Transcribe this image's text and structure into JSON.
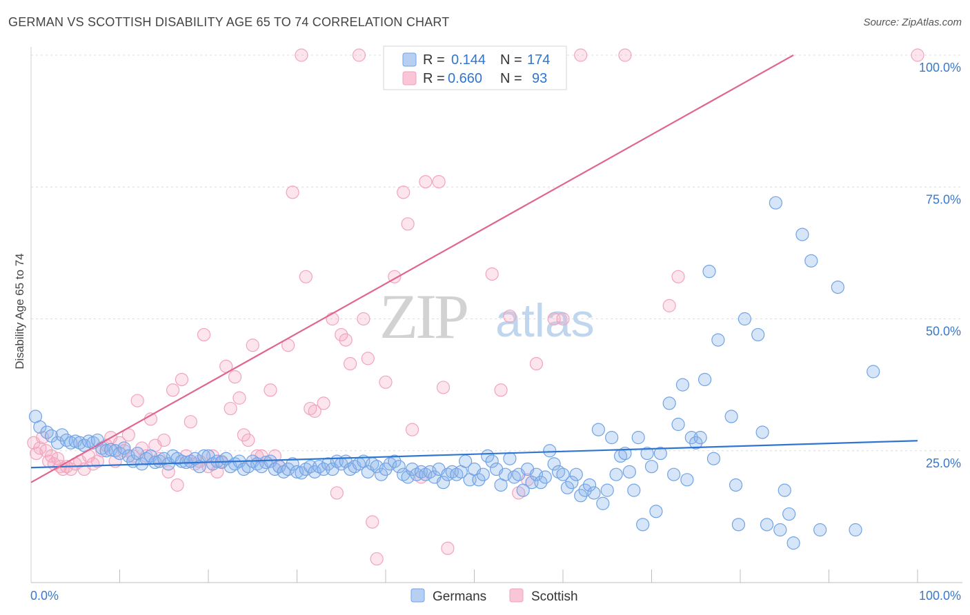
{
  "title": "GERMAN VS SCOTTISH DISABILITY AGE 65 TO 74 CORRELATION CHART",
  "source": "Source: ZipAtlas.com",
  "watermark": {
    "part1": "ZIP",
    "part2": "atlas"
  },
  "chart_data": {
    "type": "scatter",
    "xlabel": "",
    "ylabel": "Disability Age 65 to 74",
    "xlim": [
      0,
      100
    ],
    "ylim": [
      0,
      100
    ],
    "x_tick_labels": [
      "0.0%",
      "100.0%"
    ],
    "y_tick_labels": [
      "25.0%",
      "50.0%",
      "75.0%",
      "100.0%"
    ],
    "y_ticks": [
      25,
      50,
      75,
      100
    ],
    "grid": true,
    "legend_position": "top-center",
    "colors": {
      "Germans": "#6fa3e6",
      "Scottish": "#f2a3bd",
      "Germans_line": "#2e75d1",
      "Scottish_line": "#e0648e"
    },
    "series": [
      {
        "name": "Germans",
        "R": "0.144",
        "N": "174",
        "trend": {
          "x": [
            0,
            100
          ],
          "y": [
            21.8,
            26.9
          ]
        },
        "points": [
          [
            0.5,
            31.5
          ],
          [
            1,
            29.5
          ],
          [
            1.8,
            28.5
          ],
          [
            2.3,
            27.8
          ],
          [
            3,
            26.5
          ],
          [
            3.5,
            28
          ],
          [
            4,
            27
          ],
          [
            4.5,
            26.5
          ],
          [
            5,
            26.8
          ],
          [
            5.5,
            26.5
          ],
          [
            6,
            26
          ],
          [
            6.5,
            26.8
          ],
          [
            7,
            26.5
          ],
          [
            7.5,
            27
          ],
          [
            8,
            25.5
          ],
          [
            8.5,
            25
          ],
          [
            9,
            25.2
          ],
          [
            9.5,
            25
          ],
          [
            10,
            24.5
          ],
          [
            10.5,
            25.5
          ],
          [
            11,
            24
          ],
          [
            11.5,
            23
          ],
          [
            12,
            24.5
          ],
          [
            12.5,
            22.5
          ],
          [
            13,
            23.5
          ],
          [
            13.5,
            24
          ],
          [
            14,
            22.8
          ],
          [
            14.5,
            23
          ],
          [
            15,
            23.5
          ],
          [
            15.5,
            22.5
          ],
          [
            16,
            24
          ],
          [
            16.5,
            23.5
          ],
          [
            17,
            23
          ],
          [
            17.5,
            22.8
          ],
          [
            18,
            23
          ],
          [
            18.5,
            23.5
          ],
          [
            19,
            22
          ],
          [
            19.5,
            24
          ],
          [
            20,
            24
          ],
          [
            20.5,
            22.5
          ],
          [
            21,
            23
          ],
          [
            21.5,
            22.8
          ],
          [
            22,
            23.5
          ],
          [
            22.5,
            22
          ],
          [
            23,
            22.5
          ],
          [
            23.5,
            23
          ],
          [
            24,
            21.5
          ],
          [
            24.5,
            22
          ],
          [
            25,
            23
          ],
          [
            25.5,
            22.5
          ],
          [
            26,
            22
          ],
          [
            26.5,
            22.8
          ],
          [
            27,
            23
          ],
          [
            27.5,
            21.5
          ],
          [
            28,
            22
          ],
          [
            28.5,
            21
          ],
          [
            29,
            21.5
          ],
          [
            29.5,
            22.5
          ],
          [
            30,
            21
          ],
          [
            30.5,
            20.8
          ],
          [
            31,
            21.5
          ],
          [
            31.5,
            22
          ],
          [
            32,
            21
          ],
          [
            32.5,
            22
          ],
          [
            33,
            21.5
          ],
          [
            33.5,
            22.5
          ],
          [
            34,
            21.5
          ],
          [
            34.5,
            23
          ],
          [
            35,
            22.5
          ],
          [
            35.5,
            23
          ],
          [
            36,
            21.5
          ],
          [
            36.5,
            22
          ],
          [
            37,
            22.5
          ],
          [
            37.5,
            23
          ],
          [
            38,
            21
          ],
          [
            38.5,
            22.5
          ],
          [
            39,
            22
          ],
          [
            39.5,
            20.5
          ],
          [
            40,
            21.5
          ],
          [
            40.5,
            22.5
          ],
          [
            41,
            23
          ],
          [
            41.5,
            22
          ],
          [
            42,
            20.5
          ],
          [
            42.5,
            20
          ],
          [
            43,
            21.5
          ],
          [
            43.5,
            20.5
          ],
          [
            44,
            21
          ],
          [
            44.5,
            20.5
          ],
          [
            45,
            21
          ],
          [
            45.5,
            20
          ],
          [
            46,
            21.5
          ],
          [
            46.5,
            19
          ],
          [
            47,
            20.5
          ],
          [
            47.5,
            21
          ],
          [
            48,
            20.5
          ],
          [
            48.5,
            21
          ],
          [
            49,
            23
          ],
          [
            49.5,
            19.5
          ],
          [
            50,
            21.5
          ],
          [
            50.5,
            19.5
          ],
          [
            51,
            20.5
          ],
          [
            51.5,
            24
          ],
          [
            52,
            23
          ],
          [
            52.5,
            21.5
          ],
          [
            53,
            18.5
          ],
          [
            53.5,
            20.5
          ],
          [
            54,
            23.5
          ],
          [
            54.5,
            20
          ],
          [
            55,
            20.5
          ],
          [
            55.5,
            17.5
          ],
          [
            56,
            21.5
          ],
          [
            56.5,
            19
          ],
          [
            57,
            20.5
          ],
          [
            57.5,
            19
          ],
          [
            58,
            20
          ],
          [
            58.5,
            25
          ],
          [
            59,
            22.5
          ],
          [
            59.5,
            21
          ],
          [
            60,
            20.5
          ],
          [
            60.5,
            18
          ],
          [
            61,
            19
          ],
          [
            61.5,
            20.5
          ],
          [
            62,
            16.5
          ],
          [
            62.5,
            17.5
          ],
          [
            63,
            18.5
          ],
          [
            63.5,
            17
          ],
          [
            64,
            29
          ],
          [
            64.5,
            15
          ],
          [
            65,
            17.5
          ],
          [
            65.5,
            27.5
          ],
          [
            66,
            20.5
          ],
          [
            66.5,
            24
          ],
          [
            67,
            24.5
          ],
          [
            67.5,
            21
          ],
          [
            68,
            17.5
          ],
          [
            68.5,
            27.5
          ],
          [
            69,
            11
          ],
          [
            69.5,
            24.5
          ],
          [
            70,
            22
          ],
          [
            70.5,
            13.5
          ],
          [
            71,
            24.5
          ],
          [
            72,
            34
          ],
          [
            72.5,
            20.5
          ],
          [
            73,
            30
          ],
          [
            73.5,
            37.5
          ],
          [
            74,
            19.5
          ],
          [
            74.5,
            27.5
          ],
          [
            75,
            26.5
          ],
          [
            75.5,
            27.5
          ],
          [
            76,
            38.5
          ],
          [
            76.5,
            59
          ],
          [
            77,
            23.5
          ],
          [
            77.5,
            46
          ],
          [
            79,
            31.5
          ],
          [
            79.5,
            18.5
          ],
          [
            79.8,
            11
          ],
          [
            80.5,
            50
          ],
          [
            82,
            47
          ],
          [
            82.5,
            28.5
          ],
          [
            83,
            11
          ],
          [
            84,
            72
          ],
          [
            84.5,
            10
          ],
          [
            85,
            17.5
          ],
          [
            85.5,
            13
          ],
          [
            86,
            7.5
          ],
          [
            87,
            66
          ],
          [
            88,
            61
          ],
          [
            89,
            10
          ],
          [
            91,
            56
          ],
          [
            93,
            10
          ],
          [
            95,
            40
          ]
        ]
      },
      {
        "name": "Scottish",
        "R": "0.660",
        "N": "93",
        "trend": {
          "x": [
            0,
            86
          ],
          "y": [
            19,
            100
          ]
        },
        "points": [
          [
            0.3,
            26.5
          ],
          [
            0.6,
            24.5
          ],
          [
            1,
            25.5
          ],
          [
            1.3,
            27.5
          ],
          [
            1.7,
            25
          ],
          [
            2,
            23
          ],
          [
            2.3,
            24
          ],
          [
            2.6,
            22.5
          ],
          [
            3,
            23.5
          ],
          [
            3.3,
            22
          ],
          [
            3.6,
            21.5
          ],
          [
            4,
            22
          ],
          [
            4.5,
            21.5
          ],
          [
            5,
            22.5
          ],
          [
            5.5,
            23
          ],
          [
            6,
            21.5
          ],
          [
            6.5,
            24
          ],
          [
            7,
            22.5
          ],
          [
            7.5,
            23
          ],
          [
            8,
            25
          ],
          [
            8.5,
            26
          ],
          [
            9,
            27.5
          ],
          [
            9.5,
            23
          ],
          [
            10,
            26.5
          ],
          [
            10.5,
            25
          ],
          [
            11,
            28
          ],
          [
            11.5,
            24
          ],
          [
            12,
            34.5
          ],
          [
            12.5,
            25.5
          ],
          [
            13,
            24
          ],
          [
            13.5,
            31
          ],
          [
            14,
            26
          ],
          [
            14.5,
            23.5
          ],
          [
            15,
            27
          ],
          [
            15.5,
            21
          ],
          [
            16,
            36.5
          ],
          [
            16.5,
            18.5
          ],
          [
            17,
            38.5
          ],
          [
            17.5,
            24
          ],
          [
            18,
            30.5
          ],
          [
            18.5,
            22.5
          ],
          [
            19,
            23
          ],
          [
            19.5,
            47
          ],
          [
            20,
            22
          ],
          [
            20.5,
            24
          ],
          [
            21,
            21
          ],
          [
            21.5,
            23
          ],
          [
            22,
            41
          ],
          [
            22.5,
            33
          ],
          [
            23,
            39
          ],
          [
            23.5,
            35
          ],
          [
            24,
            28
          ],
          [
            24.5,
            27
          ],
          [
            25,
            45
          ],
          [
            25.5,
            24
          ],
          [
            26,
            24
          ],
          [
            27,
            36.5
          ],
          [
            27.5,
            24
          ],
          [
            28,
            22
          ],
          [
            29,
            45
          ],
          [
            29.5,
            74
          ],
          [
            30.5,
            100
          ],
          [
            31,
            58
          ],
          [
            31.5,
            33
          ],
          [
            32,
            32.5
          ],
          [
            33,
            34
          ],
          [
            34,
            50
          ],
          [
            34.5,
            17
          ],
          [
            35,
            47
          ],
          [
            35.5,
            46
          ],
          [
            36,
            41.5
          ],
          [
            37,
            100
          ],
          [
            37.5,
            50
          ],
          [
            38,
            42.5
          ],
          [
            38.5,
            11.5
          ],
          [
            39,
            4.5
          ],
          [
            40,
            38
          ],
          [
            41,
            58
          ],
          [
            42,
            74
          ],
          [
            42.5,
            68
          ],
          [
            43,
            29
          ],
          [
            44,
            20
          ],
          [
            44.5,
            76
          ],
          [
            45,
            100
          ],
          [
            46,
            76
          ],
          [
            46.5,
            37
          ],
          [
            47,
            6.5
          ],
          [
            52,
            58.5
          ],
          [
            53,
            36.5
          ],
          [
            54,
            50.5
          ],
          [
            55,
            17
          ],
          [
            56,
            19.5
          ],
          [
            57,
            41.5
          ],
          [
            59,
            50
          ],
          [
            60,
            50
          ],
          [
            62,
            100
          ],
          [
            67,
            100
          ],
          [
            72,
            52.5
          ],
          [
            73,
            58
          ],
          [
            100,
            100
          ]
        ]
      }
    ]
  },
  "legend": {
    "rows": [
      {
        "r_label": "R =",
        "r_value": "0.144",
        "n_label": "N =",
        "n_value": "174"
      },
      {
        "r_label": "R =",
        "r_value": "0.660",
        "n_label": "N =",
        "n_value": "93"
      }
    ]
  },
  "bottom_legend": [
    "Germans",
    "Scottish"
  ]
}
